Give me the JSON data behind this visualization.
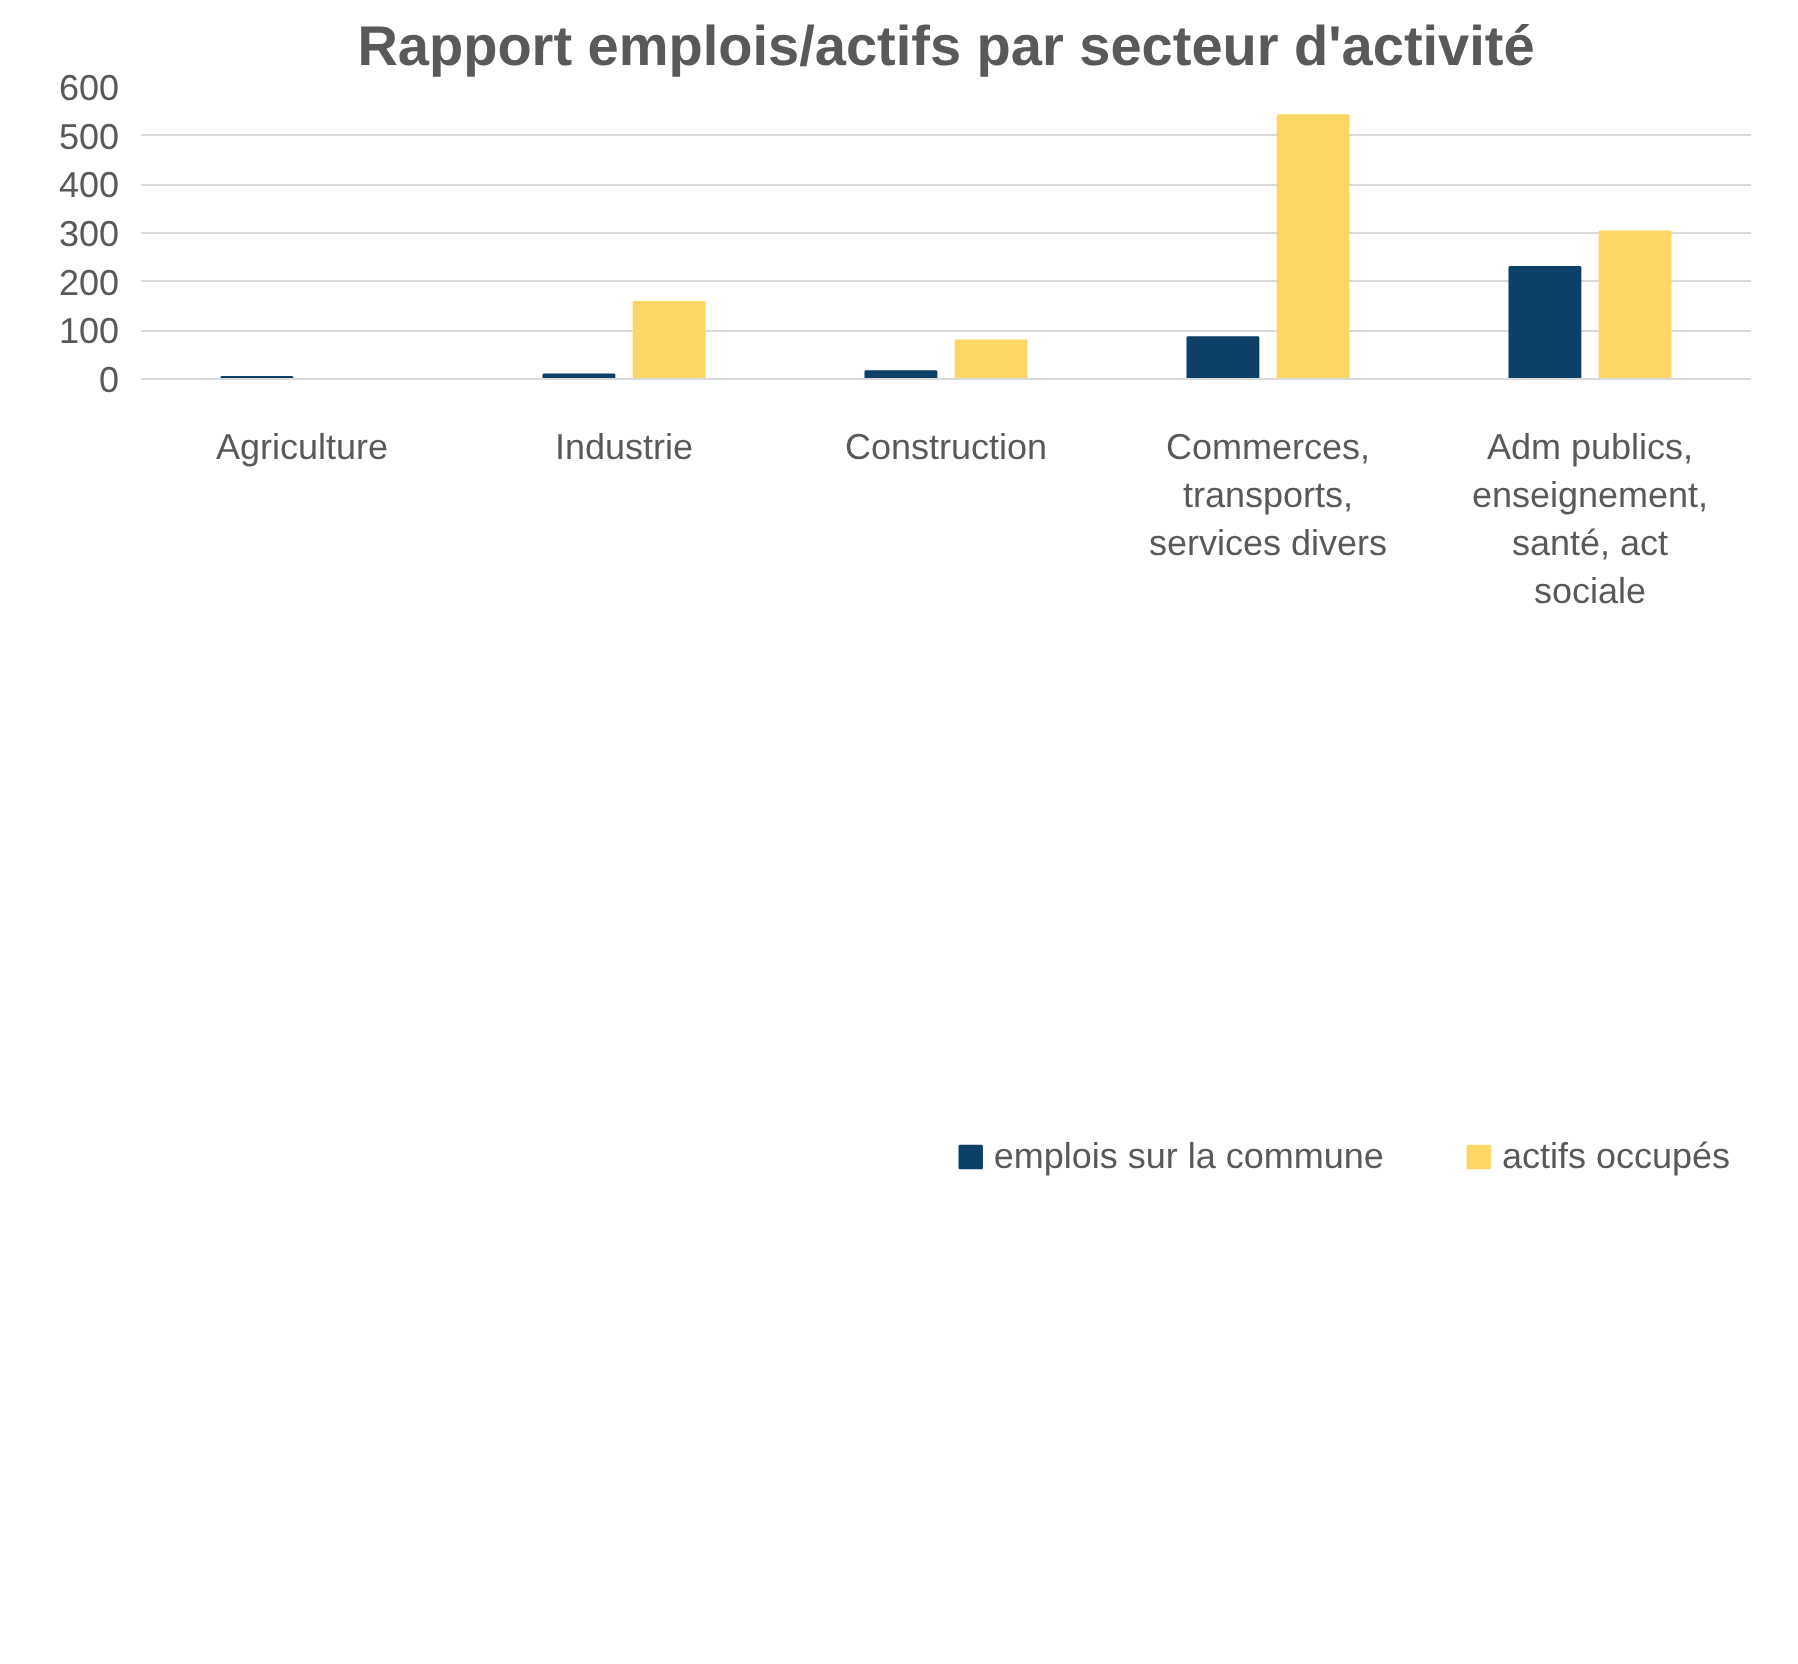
{
  "chart_data": {
    "type": "bar",
    "title": "Rapport emplois/actifs par secteur d'activité",
    "categories": [
      "Agriculture",
      "Industrie",
      "Construction",
      "Commerces, transports, services divers",
      "Adm publics, enseignement, santé, act sociale"
    ],
    "series": [
      {
        "name": "emplois sur la commune",
        "color": "#0c4066",
        "values": [
          4,
          9,
          16,
          86,
          230
        ]
      },
      {
        "name": "actifs occupés",
        "color": "#fdd766",
        "values": [
          0,
          158,
          79,
          542,
          303
        ]
      }
    ],
    "ylim": [
      0,
      600
    ],
    "yticks": [
      0,
      100,
      200,
      300,
      400,
      500,
      600
    ],
    "grid": "y",
    "legend": "bottom"
  }
}
